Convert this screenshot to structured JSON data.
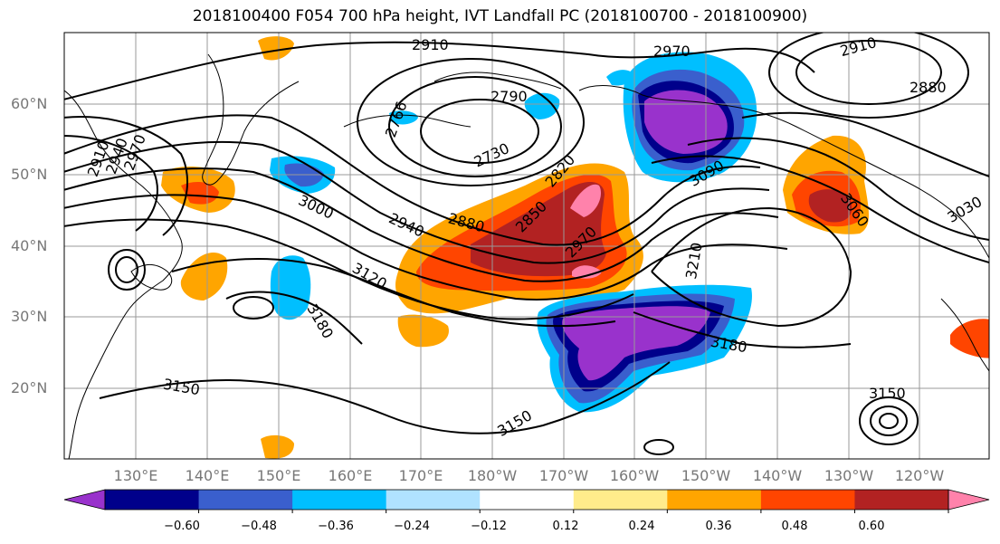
{
  "title": "2018100400 F054 700 hPa height, IVT Landfall PC (2018100700 - 2018100900)",
  "map": {
    "lat_labels": [
      "60°N",
      "50°N",
      "40°N",
      "30°N",
      "20°N"
    ],
    "lon_labels": [
      "130°E",
      "140°E",
      "150°E",
      "160°E",
      "170°E",
      "180°W",
      "170°W",
      "160°W",
      "150°W",
      "140°W",
      "130°W",
      "120°W"
    ],
    "grid": true,
    "gridline_color": "#999999",
    "coastline_color": "#000000"
  },
  "contours": {
    "variable": "700 hPa height",
    "labels": [
      "2910",
      "2970",
      "2790",
      "2766",
      "2730",
      "2820",
      "2910",
      "2880",
      "2910",
      "2940",
      "2970",
      "3000",
      "2940",
      "2880",
      "2850",
      "2970",
      "3090",
      "3060",
      "3030",
      "3210",
      "3120",
      "3180",
      "3180",
      "3150",
      "3150",
      "3150"
    ]
  },
  "colorbar": {
    "ticks": [
      "−0.60",
      "−0.48",
      "−0.36",
      "−0.24",
      "−0.12",
      "0.12",
      "0.24",
      "0.36",
      "0.48",
      "0.60"
    ],
    "colors": [
      "#9932cc",
      "#00008b",
      "#3a5fcd",
      "#00bfff",
      "#b0e2ff",
      "#ffffff",
      "#ffec8b",
      "#ffa500",
      "#ff4500",
      "#b22222",
      "#ff82ab"
    ],
    "extend": "both"
  },
  "shading_colors": {
    "purple": "#9932cc",
    "navy": "#00008b",
    "royal": "#3a5fcd",
    "sky": "#00bfff",
    "light": "#b0e2ff",
    "yellow": "#ffec8b",
    "orange": "#ffa500",
    "red": "#ff4500",
    "dark_red": "#b22222",
    "pink": "#ff82ab"
  }
}
